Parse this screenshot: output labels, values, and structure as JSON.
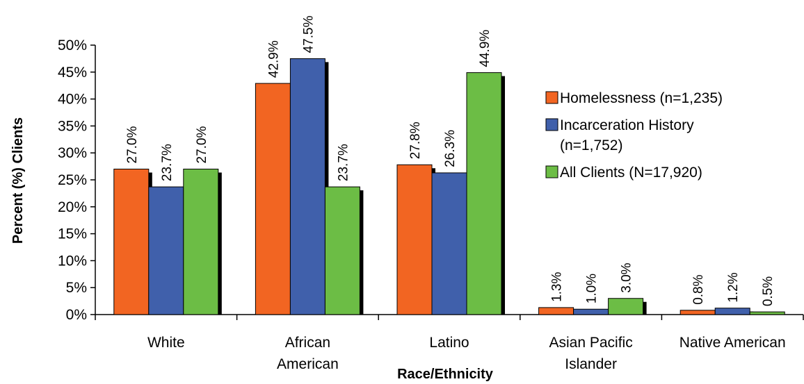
{
  "chart_data": {
    "type": "bar",
    "title": "",
    "xlabel": "Race/Ethnicity",
    "ylabel": "Percent (%) Clients",
    "ylim": [
      0,
      50
    ],
    "yticks": [
      "0%",
      "5%",
      "10%",
      "15%",
      "20%",
      "25%",
      "30%",
      "35%",
      "40%",
      "45%",
      "50%"
    ],
    "ytick_values": [
      0,
      5,
      10,
      15,
      20,
      25,
      30,
      35,
      40,
      45,
      50
    ],
    "grid": false,
    "legend_position": "right",
    "categories": [
      {
        "lines": [
          "White"
        ]
      },
      {
        "lines": [
          "African",
          "American"
        ]
      },
      {
        "lines": [
          "Latino"
        ]
      },
      {
        "lines": [
          "Asian Pacific",
          "Islander"
        ]
      },
      {
        "lines": [
          "Native American"
        ]
      }
    ],
    "series": [
      {
        "name": "Homelessness (n=1,235)",
        "legend_lines": [
          "Homelessness (n=1,235)"
        ],
        "color": "#f26522",
        "values": [
          27.0,
          42.9,
          27.8,
          1.3,
          0.8
        ],
        "labels": [
          "27.0%",
          "42.9%",
          "27.8%",
          "1.3%",
          "0.8%"
        ]
      },
      {
        "name": "Incarceration History (n=1,752)",
        "legend_lines": [
          "Incarceration History",
          "(n=1,752)"
        ],
        "color": "#4060ab",
        "values": [
          23.7,
          47.5,
          26.3,
          1.0,
          1.2
        ],
        "labels": [
          "23.7%",
          "47.5%",
          "26.3%",
          "1.0%",
          "1.2%"
        ]
      },
      {
        "name": "All Clients (N=17,920)",
        "legend_lines": [
          "All Clients (N=17,920)"
        ],
        "color": "#6cbd45",
        "values": [
          27.0,
          23.7,
          44.9,
          3.0,
          0.5
        ],
        "labels": [
          "27.0%",
          "23.7%",
          "44.9%",
          "3.0%",
          "0.5%"
        ]
      }
    ]
  }
}
